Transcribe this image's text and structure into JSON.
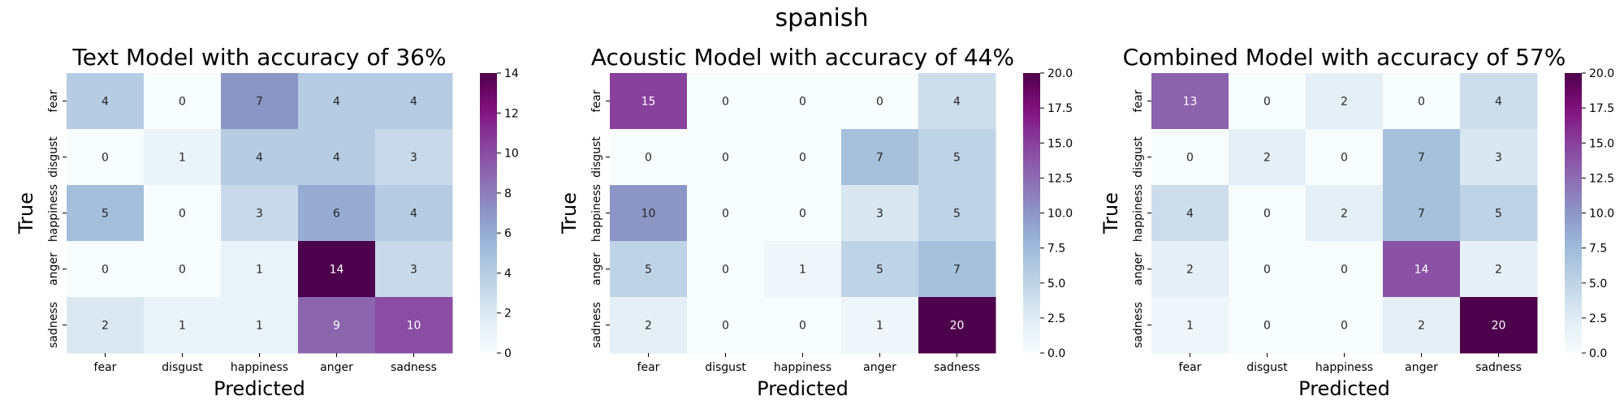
{
  "figure": {
    "suptitle": "spanish"
  },
  "chart_data": [
    {
      "type": "heatmap",
      "title": "Text Model with accuracy of 36%",
      "xlabel": "Predicted",
      "ylabel": "True",
      "x_categories": [
        "fear",
        "disgust",
        "happiness",
        "anger",
        "sadness"
      ],
      "y_categories": [
        "fear",
        "disgust",
        "happiness",
        "anger",
        "sadness"
      ],
      "values": [
        [
          4,
          0,
          7,
          4,
          4
        ],
        [
          0,
          1,
          4,
          4,
          3
        ],
        [
          5,
          0,
          3,
          6,
          4
        ],
        [
          0,
          0,
          1,
          14,
          3
        ],
        [
          2,
          1,
          1,
          9,
          10
        ]
      ],
      "vmin": 0,
      "vmax": 14,
      "colorbar_ticks": [
        "0",
        "2",
        "4",
        "6",
        "8",
        "10",
        "12",
        "14"
      ],
      "colormap": "BuPu"
    },
    {
      "type": "heatmap",
      "title": "Acoustic Model with accuracy of 44%",
      "xlabel": "Predicted",
      "ylabel": "True",
      "x_categories": [
        "fear",
        "disgust",
        "happiness",
        "anger",
        "sadness"
      ],
      "y_categories": [
        "fear",
        "disgust",
        "happiness",
        "anger",
        "sadness"
      ],
      "values": [
        [
          15,
          0,
          0,
          0,
          4
        ],
        [
          0,
          0,
          0,
          7,
          5
        ],
        [
          10,
          0,
          0,
          3,
          5
        ],
        [
          5,
          0,
          1,
          5,
          7
        ],
        [
          2,
          0,
          0,
          1,
          20
        ]
      ],
      "vmin": 0,
      "vmax": 20,
      "colorbar_ticks": [
        "0.0",
        "2.5",
        "5.0",
        "7.5",
        "10.0",
        "12.5",
        "15.0",
        "17.5",
        "20.0"
      ],
      "colormap": "BuPu"
    },
    {
      "type": "heatmap",
      "title": "Combined Model with accuracy of 57%",
      "xlabel": "Predicted",
      "ylabel": "True",
      "x_categories": [
        "fear",
        "disgust",
        "happiness",
        "anger",
        "sadness"
      ],
      "y_categories": [
        "fear",
        "disgust",
        "happiness",
        "anger",
        "sadness"
      ],
      "values": [
        [
          13,
          0,
          2,
          0,
          4
        ],
        [
          0,
          2,
          0,
          7,
          3
        ],
        [
          4,
          0,
          2,
          7,
          5
        ],
        [
          2,
          0,
          0,
          14,
          2
        ],
        [
          1,
          0,
          0,
          2,
          20
        ]
      ],
      "vmin": 0,
      "vmax": 20,
      "colorbar_ticks": [
        "0.0",
        "2.5",
        "5.0",
        "7.5",
        "10.0",
        "12.5",
        "15.0",
        "17.5",
        "20.0"
      ],
      "colormap": "BuPu"
    }
  ]
}
